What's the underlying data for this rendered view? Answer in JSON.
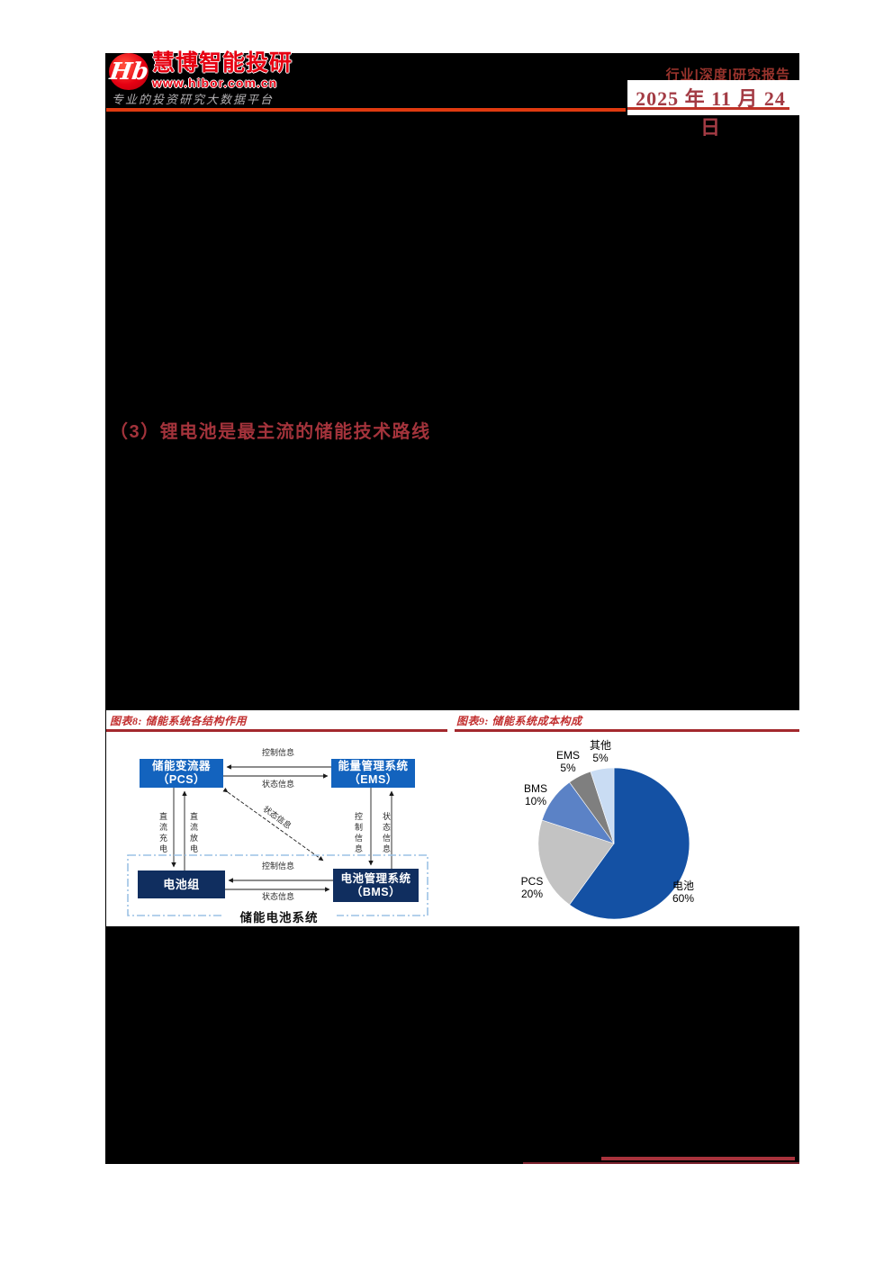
{
  "header": {
    "logo_monogram": "Hb",
    "brand": "慧博智能投研",
    "website": "www.hibor.com.cn",
    "slogan": "专业的投资研究大数据平台",
    "report_tags": "行业|深度|研究报告",
    "date": "2025 年 11 月 24 日"
  },
  "section": {
    "heading": "（3）锂电池是最主流的储能技术路线"
  },
  "figure8": {
    "title": "图表8: 储能系统各结构作用",
    "nodes": {
      "pcs_line1": "储能变流器",
      "pcs_line2": "（PCS）",
      "ems_line1": "能量管理系统",
      "ems_line2": "（EMS）",
      "battery": "电池组",
      "bms_line1": "电池管理系统",
      "bms_line2": "（BMS）"
    },
    "edges": {
      "pcs_ems_ctrl": "控制信息",
      "pcs_ems_status": "状态信息",
      "batt_bms_ctrl": "控制信息",
      "batt_bms_status": "状态信息",
      "dc_charge": "直流充电",
      "dc_discharge": "直流放电",
      "ems_bms_ctrl": "控制信息",
      "ems_bms_status": "状态信息",
      "pcs_bms_status": "状态信息",
      "group_label": "储能电池系统"
    }
  },
  "figure9": {
    "title": "图表9: 储能系统成本构成"
  },
  "chart_data": {
    "type": "pie",
    "title": "储能系统成本构成",
    "start_angle_deg": 0,
    "direction": "clockwise",
    "legend_position": "labels-around-pie",
    "slices": [
      {
        "label": "电池",
        "value": 60,
        "pct": "60%",
        "color": "#1451A4"
      },
      {
        "label": "PCS",
        "value": 20,
        "pct": "20%",
        "color": "#C3C3C3"
      },
      {
        "label": "BMS",
        "value": 10,
        "pct": "10%",
        "color": "#5B82C6"
      },
      {
        "label": "EMS",
        "value": 5,
        "pct": "5%",
        "color": "#7F7F7F"
      },
      {
        "label": "其他",
        "value": 5,
        "pct": "5%",
        "color": "#C9DCF3"
      }
    ]
  },
  "colors": {
    "accent_red_line": "#E03A10",
    "heading_red": "#A3333B",
    "figure_title_red": "#C22F2F",
    "brand_red": "#E60012",
    "node_blue": "#1363BE",
    "node_navy": "#102E5F",
    "dashed_group_blue": "#9CC2E5",
    "redaction_black": "#000000"
  }
}
